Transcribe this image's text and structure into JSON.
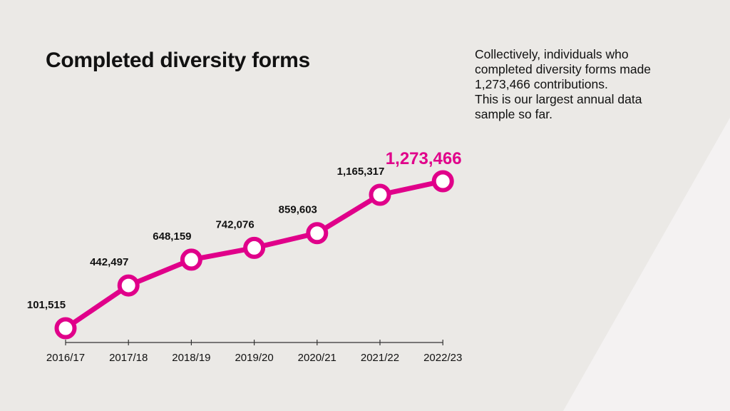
{
  "title": "Completed diversity forms",
  "description": {
    "line1": "Collectively, individuals who",
    "line2": "completed diversity forms made",
    "line3": "1,273,466 contributions.",
    "line4": "This is our largest annual data",
    "line5": "sample so far."
  },
  "colors": {
    "accent": "#e0008a",
    "background": "#ebe9e6",
    "panel": "#f4f2f2",
    "text": "#111111"
  },
  "chart_data": {
    "type": "line",
    "categories": [
      "2016/17",
      "2017/18",
      "2018/19",
      "2019/20",
      "2020/21",
      "2021/22",
      "2022/23"
    ],
    "series": [
      {
        "values": [
          101515,
          442497,
          648159,
          742076,
          859603,
          1165317,
          1273466
        ],
        "labels": [
          "101,515",
          "442,497",
          "648,159",
          "742,076",
          "859,603",
          "1,165,317",
          "1,273,466"
        ]
      }
    ],
    "highlight_last": true,
    "ylim": [
      101515,
      1273466
    ],
    "grid": false,
    "legend": "none"
  }
}
